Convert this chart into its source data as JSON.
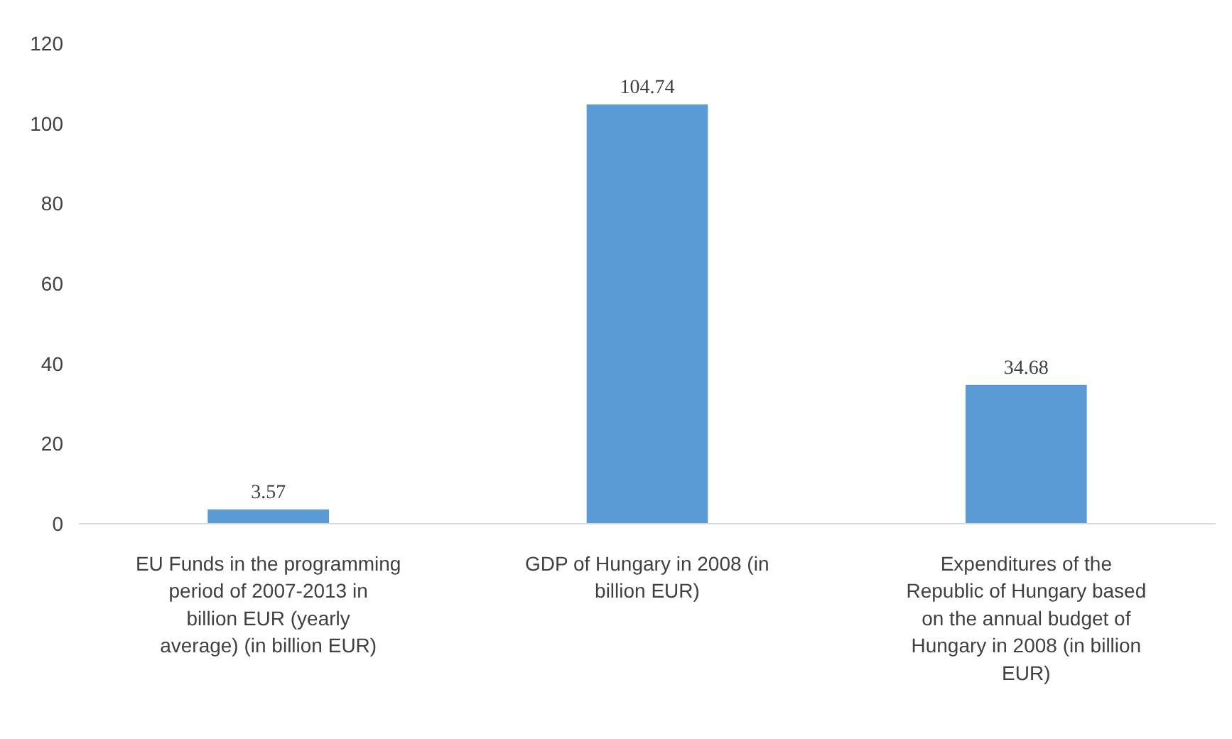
{
  "chart_data": {
    "type": "bar",
    "categories": [
      "EU Funds in the programming period of 2007-2013 in billion EUR (yearly average) (in billion EUR)",
      "GDP of Hungary in 2008 (in billion EUR)",
      "Expenditures of the Republic of Hungary based on the annual budget of Hungary in 2008 (in billion EUR)"
    ],
    "values": [
      3.57,
      104.74,
      34.68
    ],
    "color": "#5b9bd5",
    "ylim": [
      0,
      120
    ],
    "yticks": [
      0,
      20,
      40,
      60,
      80,
      100,
      120
    ],
    "grid": false,
    "data_labels": true
  }
}
